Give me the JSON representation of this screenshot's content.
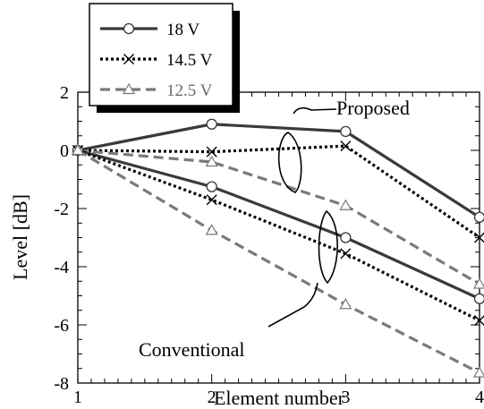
{
  "chart_data": {
    "type": "line",
    "xlabel": "Element number",
    "ylabel": "Level [dB]",
    "xlim": [
      1,
      4
    ],
    "ylim": [
      -8,
      2
    ],
    "x_ticks": [
      "1",
      "2",
      "3",
      "4"
    ],
    "y_ticks": [
      "2",
      "0",
      "-2",
      "-4",
      "-6",
      "-8"
    ],
    "x": [
      1,
      2,
      3,
      4
    ],
    "series": [
      {
        "name": "18 V",
        "group": "Proposed",
        "values": [
          0,
          0.9,
          0.65,
          -2.3
        ],
        "color": "#3a3a3a",
        "dash": "solid",
        "marker": "circle"
      },
      {
        "name": "14.5 V",
        "group": "Proposed",
        "values": [
          0,
          -0.05,
          0.15,
          -3.0
        ],
        "color": "#000000",
        "dash": "dotted",
        "marker": "x"
      },
      {
        "name": "12.5 V",
        "group": "Proposed",
        "values": [
          0,
          -0.4,
          -1.9,
          -4.6
        ],
        "color": "#7a7a7a",
        "dash": "dashed",
        "marker": "triangle"
      },
      {
        "name": "18 V",
        "group": "Conventional",
        "values": [
          0,
          -1.25,
          -3.0,
          -5.1
        ],
        "color": "#3a3a3a",
        "dash": "solid",
        "marker": "circle"
      },
      {
        "name": "14.5 V",
        "group": "Conventional",
        "values": [
          0,
          -1.7,
          -3.55,
          -5.85
        ],
        "color": "#000000",
        "dash": "dotted",
        "marker": "x"
      },
      {
        "name": "12.5 V",
        "group": "Conventional",
        "values": [
          0,
          -2.75,
          -5.3,
          -7.65
        ],
        "color": "#7a7a7a",
        "dash": "dashed",
        "marker": "triangle"
      }
    ],
    "legend": {
      "placement": "top-left",
      "entries": [
        {
          "label": "18 V",
          "color": "#3a3a3a",
          "dash": "solid",
          "marker": "circle"
        },
        {
          "label": "14.5 V",
          "color": "#000000",
          "dash": "dotted",
          "marker": "x"
        },
        {
          "label": "12.5 V",
          "color": "#7a7a7a",
          "dash": "dashed",
          "marker": "triangle"
        }
      ]
    },
    "annotations": {
      "proposed": "Proposed",
      "conventional": "Conventional"
    },
    "grid": false
  }
}
